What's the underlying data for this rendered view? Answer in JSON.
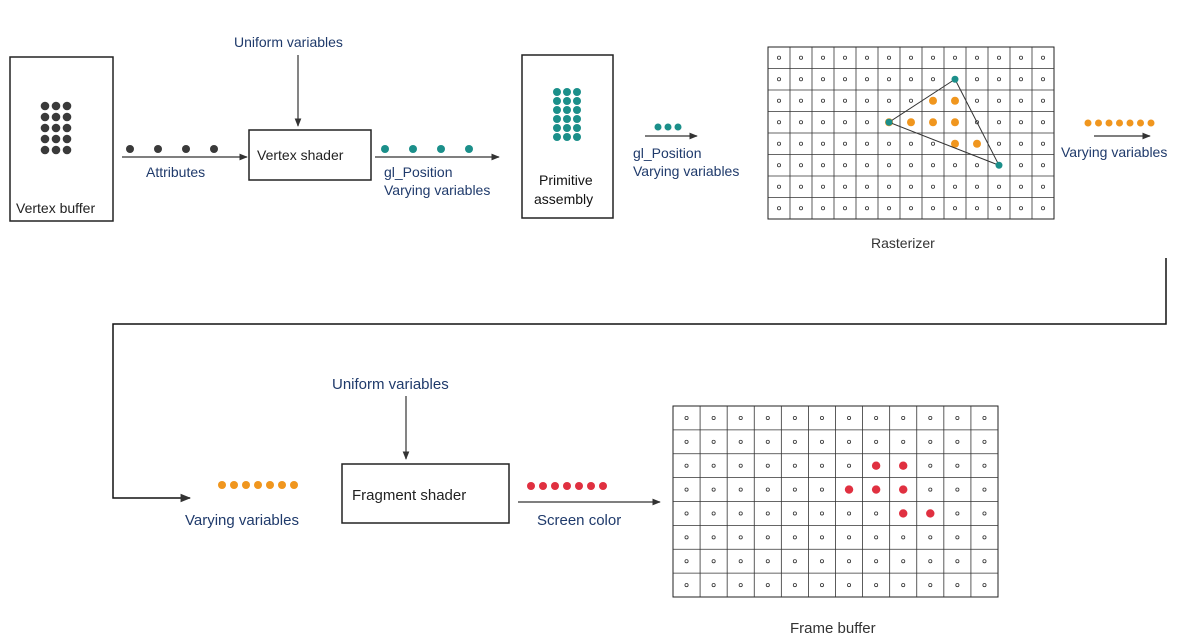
{
  "labels": {
    "vertex_buffer": "Vertex buffer",
    "attributes": "Attributes",
    "uniform_top": "Uniform variables",
    "vertex_shader": "Vertex shader",
    "gl_position_1": "gl_Position",
    "varying_1": "Varying variables",
    "primitive_1": "Primitive",
    "primitive_2": "assembly",
    "gl_position_2": "gl_Position",
    "varying_2": "Varying variables",
    "varying_3": "Varying variables",
    "rasterizer": "Rasterizer",
    "uniform_bottom": "Uniform variables",
    "fragment_shader": "Fragment shader",
    "varying_4": "Varying variables",
    "screen_color": "Screen color",
    "frame_buffer": "Frame buffer"
  },
  "colors": {
    "label_blue": "#1f3a6b",
    "teal": "#1b8f8a",
    "orange": "#f0961e",
    "red": "#e03040",
    "dark_dot": "#3a3a3a",
    "line": "#333333"
  },
  "rasterizer_grid": {
    "rows": 8,
    "cols": 13,
    "orange_cells": [
      [
        2,
        7
      ],
      [
        2,
        8
      ],
      [
        3,
        5
      ],
      [
        3,
        6
      ],
      [
        3,
        7
      ],
      [
        3,
        8
      ],
      [
        4,
        8
      ],
      [
        4,
        9
      ]
    ],
    "teal_vertices": [
      [
        1,
        8
      ],
      [
        3,
        5
      ],
      [
        5,
        10
      ]
    ]
  },
  "frame_buffer_grid": {
    "rows": 8,
    "cols": 12,
    "red_cells": [
      [
        2,
        7
      ],
      [
        2,
        8
      ],
      [
        3,
        6
      ],
      [
        3,
        7
      ],
      [
        3,
        8
      ],
      [
        4,
        8
      ],
      [
        4,
        9
      ]
    ]
  }
}
